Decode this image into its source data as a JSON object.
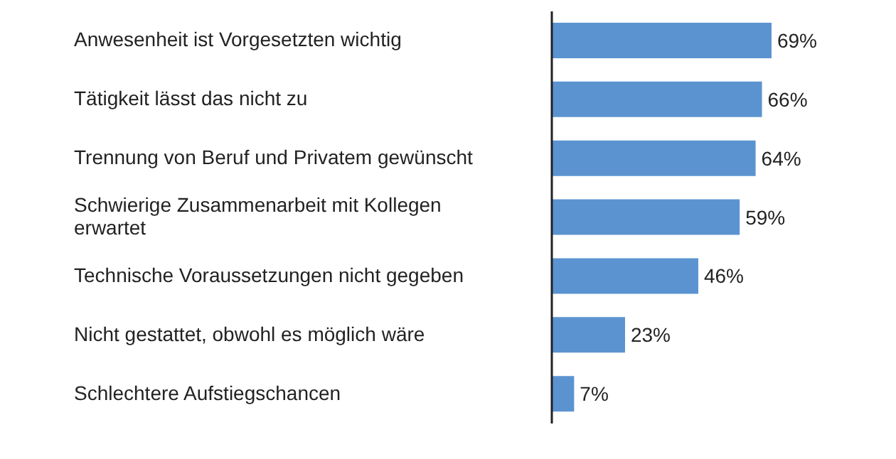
{
  "chart_data": {
    "type": "bar",
    "orientation": "horizontal",
    "categories": [
      "Anwesenheit ist Vorgesetzten wichtig",
      "Tätigkeit lässt das nicht zu",
      "Trennung von Beruf und Privatem gewünscht",
      "Schwierige Zusammenarbeit mit Kollegen erwartet",
      "Technische Voraussetzungen nicht gegeben",
      "Nicht gestattet, obwohl es möglich wäre",
      "Schlechtere Aufstiegschancen"
    ],
    "values": [
      69,
      66,
      64,
      59,
      46,
      23,
      7
    ],
    "value_labels": [
      "69%",
      "66%",
      "64%",
      "59%",
      "46%",
      "23%",
      "7%"
    ],
    "color": "#5b93d1",
    "grid": false,
    "legend": false
  }
}
